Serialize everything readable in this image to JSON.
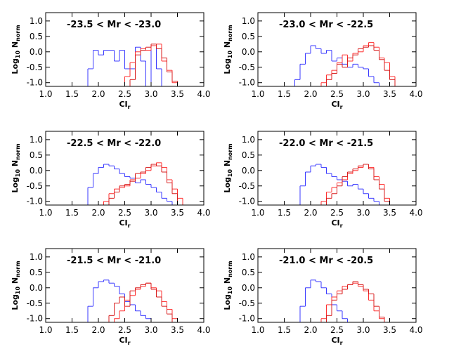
{
  "chart_data": [
    {
      "type": "step-histogram",
      "title": "-23.5 < Mr < -23.0",
      "ylabel_parts": [
        "Log",
        "10",
        " N",
        "norm"
      ],
      "xlabel_parts": [
        "CI",
        "r"
      ],
      "bins": [
        1.7,
        1.8,
        1.9,
        2.0,
        2.1,
        2.2,
        2.3,
        2.4,
        2.5,
        2.6,
        2.7,
        2.8,
        2.9,
        3.0,
        3.1,
        3.2,
        3.3,
        3.4,
        3.5,
        3.6,
        3.7
      ],
      "series": [
        {
          "color": "#3a3aff",
          "values": [
            null,
            -0.55,
            0.05,
            -0.1,
            0.05,
            0.05,
            -0.3,
            0.05,
            -0.55,
            -0.55,
            0.15,
            -0.3,
            -1.2,
            0.2,
            -0.55,
            null,
            null,
            null,
            null,
            null
          ]
        },
        {
          "color": "#ff3030",
          "values": [
            null,
            null,
            null,
            null,
            null,
            null,
            null,
            null,
            -0.8,
            -0.35,
            0.0,
            0.1,
            0.05,
            0.2,
            0.25,
            -0.3,
            -0.6,
            -1.0,
            null,
            null
          ]
        },
        {
          "color": "#d81e1e",
          "values": [
            null,
            null,
            null,
            null,
            null,
            null,
            null,
            null,
            null,
            -0.9,
            -0.1,
            0.05,
            0.15,
            0.25,
            0.1,
            -0.2,
            -0.65,
            -0.95,
            null,
            null
          ]
        }
      ],
      "xlim": [
        1.0,
        4.0
      ],
      "ylim": [
        -1.12,
        1.27
      ],
      "xticks": [
        {
          "value": 1.0,
          "label": "1.0"
        },
        1.5,
        {
          "value": 2.0,
          "label": "2.0"
        },
        2.5,
        {
          "value": 3.0,
          "label": "3.0"
        },
        3.5,
        {
          "value": 4.0,
          "label": "4.0"
        }
      ],
      "yticks": [
        {
          "value": 1.0,
          "label": "1.0"
        },
        0.5,
        {
          "value": 0.0,
          "label": "0.0"
        },
        -0.5,
        {
          "value": -1.0,
          "label": "-1.0"
        }
      ]
    },
    {
      "type": "step-histogram",
      "title": "-23.0 < Mr < -22.5",
      "ylabel_parts": [
        "Log",
        "10",
        " N",
        "norm"
      ],
      "xlabel_parts": [
        "CI",
        "r"
      ],
      "bins": [
        1.7,
        1.8,
        1.9,
        2.0,
        2.1,
        2.2,
        2.3,
        2.4,
        2.5,
        2.6,
        2.7,
        2.8,
        2.9,
        3.0,
        3.1,
        3.2,
        3.3,
        3.4,
        3.5,
        3.6,
        3.7
      ],
      "series": [
        {
          "color": "#3a3aff",
          "values": [
            -0.9,
            -0.4,
            -0.05,
            0.2,
            0.1,
            -0.05,
            0.05,
            -0.3,
            -0.2,
            -0.4,
            -0.5,
            -0.4,
            -0.5,
            -0.55,
            -0.8,
            -1.0,
            null,
            null,
            null,
            null
          ]
        },
        {
          "color": "#ff3030",
          "values": [
            null,
            null,
            null,
            null,
            null,
            -1.0,
            -0.75,
            -0.6,
            -0.35,
            -0.1,
            -0.3,
            -0.05,
            0.0,
            0.2,
            0.3,
            0.15,
            -0.2,
            -0.35,
            -0.8,
            null
          ]
        },
        {
          "color": "#d81e1e",
          "values": [
            null,
            null,
            null,
            null,
            null,
            null,
            -0.9,
            -0.7,
            -0.4,
            -0.5,
            -0.2,
            -0.1,
            0.1,
            0.15,
            0.2,
            0.05,
            -0.25,
            -0.6,
            -0.9,
            null
          ]
        }
      ],
      "xlim": [
        1.0,
        4.0
      ],
      "ylim": [
        -1.12,
        1.27
      ],
      "xticks": [
        {
          "value": 1.0,
          "label": "1.0"
        },
        1.5,
        {
          "value": 2.0,
          "label": "2.0"
        },
        2.5,
        {
          "value": 3.0,
          "label": "3.0"
        },
        3.5,
        {
          "value": 4.0,
          "label": "4.0"
        }
      ],
      "yticks": [
        {
          "value": 1.0,
          "label": "1.0"
        },
        0.5,
        {
          "value": 0.0,
          "label": "0.0"
        },
        -0.5,
        {
          "value": -1.0,
          "label": "-1.0"
        }
      ]
    },
    {
      "type": "step-histogram",
      "title": "-22.5 < Mr < -22.0",
      "ylabel_parts": [
        "Log",
        "10",
        " N",
        "norm"
      ],
      "xlabel_parts": [
        "CI",
        "r"
      ],
      "bins": [
        1.7,
        1.8,
        1.9,
        2.0,
        2.1,
        2.2,
        2.3,
        2.4,
        2.5,
        2.6,
        2.7,
        2.8,
        2.9,
        3.0,
        3.1,
        3.2,
        3.3,
        3.4,
        3.5,
        3.6,
        3.7
      ],
      "series": [
        {
          "color": "#3a3aff",
          "values": [
            null,
            -0.55,
            -0.1,
            0.1,
            0.2,
            0.15,
            0.05,
            -0.1,
            -0.2,
            -0.25,
            -0.4,
            -0.3,
            -0.45,
            -0.55,
            -0.7,
            -0.9,
            -1.0,
            null,
            null,
            null
          ]
        },
        {
          "color": "#ff3030",
          "values": [
            null,
            null,
            null,
            null,
            -1.0,
            -0.75,
            -0.6,
            -0.55,
            -0.5,
            -0.3,
            -0.25,
            -0.1,
            0.0,
            0.15,
            0.25,
            0.1,
            -0.3,
            -0.6,
            -0.9,
            null
          ]
        },
        {
          "color": "#d81e1e",
          "values": [
            null,
            null,
            null,
            null,
            null,
            -0.9,
            -0.7,
            -0.5,
            -0.45,
            -0.35,
            -0.1,
            -0.05,
            0.1,
            0.2,
            0.15,
            -0.05,
            -0.4,
            -0.75,
            null,
            null
          ]
        }
      ],
      "xlim": [
        1.0,
        4.0
      ],
      "ylim": [
        -1.12,
        1.27
      ],
      "xticks": [
        {
          "value": 1.0,
          "label": "1.0"
        },
        1.5,
        {
          "value": 2.0,
          "label": "2.0"
        },
        2.5,
        {
          "value": 3.0,
          "label": "3.0"
        },
        3.5,
        {
          "value": 4.0,
          "label": "4.0"
        }
      ],
      "yticks": [
        {
          "value": 1.0,
          "label": "1.0"
        },
        0.5,
        {
          "value": 0.0,
          "label": "0.0"
        },
        -0.5,
        {
          "value": -1.0,
          "label": "-1.0"
        }
      ]
    },
    {
      "type": "step-histogram",
      "title": "-22.0 < Mr < -21.5",
      "ylabel_parts": [
        "Log",
        "10",
        " N",
        "norm"
      ],
      "xlabel_parts": [
        "CI",
        "r"
      ],
      "bins": [
        1.7,
        1.8,
        1.9,
        2.0,
        2.1,
        2.2,
        2.3,
        2.4,
        2.5,
        2.6,
        2.7,
        2.8,
        2.9,
        3.0,
        3.1,
        3.2,
        3.3,
        3.4,
        3.5,
        3.6,
        3.7
      ],
      "series": [
        {
          "color": "#3a3aff",
          "values": [
            null,
            -0.5,
            -0.05,
            0.15,
            0.2,
            0.1,
            -0.1,
            -0.2,
            -0.3,
            -0.35,
            -0.5,
            -0.45,
            -0.6,
            -0.75,
            -0.9,
            -1.0,
            null,
            null,
            null,
            null
          ]
        },
        {
          "color": "#ff3030",
          "values": [
            null,
            null,
            null,
            null,
            null,
            -1.0,
            -0.7,
            -0.55,
            -0.4,
            -0.3,
            -0.1,
            0.0,
            0.1,
            0.2,
            0.1,
            -0.2,
            -0.45,
            -0.9,
            null,
            null
          ]
        },
        {
          "color": "#d81e1e",
          "values": [
            null,
            null,
            null,
            null,
            null,
            null,
            -0.9,
            -0.75,
            -0.5,
            -0.2,
            -0.05,
            0.05,
            0.15,
            0.2,
            0.05,
            -0.3,
            -0.6,
            -1.0,
            null,
            null
          ]
        }
      ],
      "xlim": [
        1.0,
        4.0
      ],
      "ylim": [
        -1.12,
        1.27
      ],
      "xticks": [
        {
          "value": 1.0,
          "label": "1.0"
        },
        1.5,
        {
          "value": 2.0,
          "label": "2.0"
        },
        2.5,
        {
          "value": 3.0,
          "label": "3.0"
        },
        3.5,
        {
          "value": 4.0,
          "label": "4.0"
        }
      ],
      "yticks": [
        {
          "value": 1.0,
          "label": "1.0"
        },
        0.5,
        {
          "value": 0.0,
          "label": "0.0"
        },
        -0.5,
        {
          "value": -1.0,
          "label": "-1.0"
        }
      ]
    },
    {
      "type": "step-histogram",
      "title": "-21.5 < Mr < -21.0",
      "ylabel_parts": [
        "Log",
        "10",
        " N",
        "norm"
      ],
      "xlabel_parts": [
        "CI",
        "r"
      ],
      "bins": [
        1.7,
        1.8,
        1.9,
        2.0,
        2.1,
        2.2,
        2.3,
        2.4,
        2.5,
        2.6,
        2.7,
        2.8,
        2.9,
        3.0,
        3.1,
        3.2,
        3.3,
        3.4,
        3.5,
        3.6,
        3.7
      ],
      "series": [
        {
          "color": "#3a3aff",
          "values": [
            null,
            -0.6,
            0.0,
            0.2,
            0.25,
            0.15,
            0.05,
            -0.2,
            -0.45,
            -0.55,
            -0.75,
            -0.9,
            -1.0,
            -1.2,
            null,
            null,
            null,
            null,
            null,
            null
          ]
        },
        {
          "color": "#ff3030",
          "values": [
            null,
            null,
            null,
            null,
            null,
            null,
            -1.0,
            -0.75,
            -0.4,
            -0.25,
            -0.05,
            0.05,
            0.15,
            0.0,
            -0.1,
            -0.45,
            -0.7,
            -1.0,
            null,
            null
          ]
        },
        {
          "color": "#d81e1e",
          "values": [
            null,
            null,
            null,
            null,
            null,
            -0.9,
            -0.5,
            -0.3,
            -0.6,
            -0.1,
            0.0,
            0.1,
            0.15,
            -0.05,
            -0.3,
            -0.6,
            -0.85,
            null,
            null,
            null
          ]
        }
      ],
      "xlim": [
        1.0,
        4.0
      ],
      "ylim": [
        -1.12,
        1.27
      ],
      "xticks": [
        {
          "value": 1.0,
          "label": "1.0"
        },
        1.5,
        {
          "value": 2.0,
          "label": "2.0"
        },
        2.5,
        {
          "value": 3.0,
          "label": "3.0"
        },
        3.5,
        {
          "value": 4.0,
          "label": "4.0"
        }
      ],
      "yticks": [
        {
          "value": 1.0,
          "label": "1.0"
        },
        0.5,
        {
          "value": 0.0,
          "label": "0.0"
        },
        -0.5,
        {
          "value": -1.0,
          "label": "-1.0"
        }
      ]
    },
    {
      "type": "step-histogram",
      "title": "-21.0 < Mr < -20.5",
      "ylabel_parts": [
        "Log",
        "10",
        " N",
        "norm"
      ],
      "xlabel_parts": [
        "CI",
        "r"
      ],
      "bins": [
        1.7,
        1.8,
        1.9,
        2.0,
        2.1,
        2.2,
        2.3,
        2.4,
        2.5,
        2.6,
        2.7,
        2.8,
        2.9,
        3.0,
        3.1,
        3.2,
        3.3,
        3.4,
        3.5,
        3.6,
        3.7
      ],
      "series": [
        {
          "color": "#3a3aff",
          "values": [
            null,
            -0.6,
            0.0,
            0.25,
            0.2,
            0.0,
            -0.2,
            -0.55,
            -0.75,
            -1.0,
            null,
            null,
            null,
            null,
            null,
            null,
            null,
            null,
            null,
            null
          ]
        },
        {
          "color": "#ff3030",
          "values": [
            null,
            null,
            null,
            null,
            null,
            -1.0,
            -0.55,
            -0.3,
            -0.1,
            0.05,
            0.1,
            0.15,
            0.05,
            -0.1,
            -0.4,
            -0.75,
            -1.0,
            null,
            null,
            null
          ]
        },
        {
          "color": "#d81e1e",
          "values": [
            null,
            null,
            null,
            null,
            null,
            null,
            -0.9,
            -0.4,
            -0.2,
            -0.05,
            0.1,
            0.2,
            0.1,
            -0.05,
            -0.2,
            -0.6,
            -0.95,
            null,
            null,
            null
          ]
        }
      ],
      "xlim": [
        1.0,
        4.0
      ],
      "ylim": [
        -1.12,
        1.27
      ],
      "xticks": [
        {
          "value": 1.0,
          "label": "1.0"
        },
        1.5,
        {
          "value": 2.0,
          "label": "2.0"
        },
        2.5,
        {
          "value": 3.0,
          "label": "3.0"
        },
        3.5,
        {
          "value": 4.0,
          "label": "4.0"
        }
      ],
      "yticks": [
        {
          "value": 1.0,
          "label": "1.0"
        },
        0.5,
        {
          "value": 0.0,
          "label": "0.0"
        },
        -0.5,
        {
          "value": -1.0,
          "label": "-1.0"
        }
      ]
    }
  ]
}
